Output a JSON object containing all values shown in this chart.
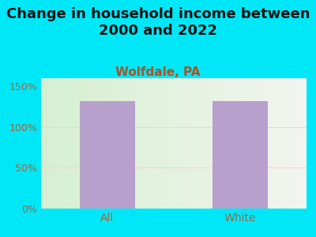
{
  "title": "Change in household income between\n2000 and 2022",
  "subtitle": "Wolfdale, PA",
  "categories": [
    "All",
    "White"
  ],
  "values": [
    132,
    132
  ],
  "bar_color": "#b8a0cc",
  "title_fontsize": 13,
  "subtitle_fontsize": 11,
  "subtitle_color": "#b05020",
  "title_color": "#111111",
  "tick_label_color": "#996644",
  "background_outer": "#00e8f8",
  "ylim": [
    0,
    160
  ],
  "yticks": [
    0,
    50,
    100,
    150
  ],
  "ytick_labels": [
    "0%",
    "50%",
    "100%",
    "150%"
  ],
  "grid_color": "#ffcccc",
  "bar_width": 0.42
}
